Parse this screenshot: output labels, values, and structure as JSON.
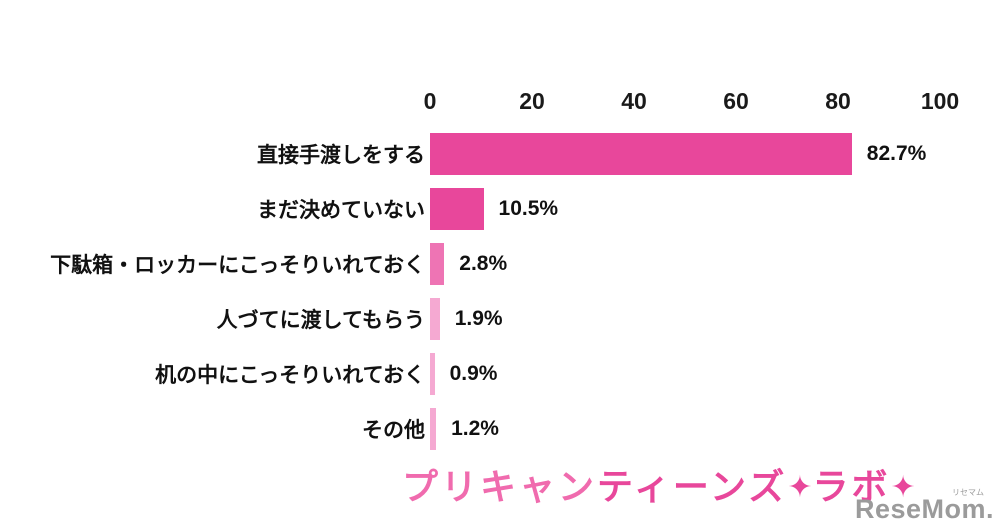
{
  "chart_data": {
    "type": "bar",
    "orientation": "horizontal",
    "title": "",
    "xlabel": "",
    "ylabel": "",
    "xlim": [
      0,
      100
    ],
    "x_ticks": [
      "0",
      "20",
      "40",
      "60",
      "80",
      "100"
    ],
    "grid": false,
    "legend": false,
    "categories": [
      "直接手渡しをする",
      "まだ決めていない",
      "下駄箱・ロッカーにこっそりいれておく",
      "人づてに渡してもらう",
      "机の中にこっそりいれておく",
      "その他"
    ],
    "values": [
      82.7,
      10.5,
      2.8,
      1.9,
      0.9,
      1.2
    ],
    "value_labels": [
      "82.7%",
      "10.5%",
      "2.8%",
      "1.9%",
      "0.9%",
      "1.2%"
    ],
    "bar_colors": [
      "#e8479b",
      "#e8479b",
      "#ee74b4",
      "#f5a9d2",
      "#f5a9d2",
      "#f5a9d2"
    ]
  },
  "footer": {
    "logo_part1": "プリキャン",
    "logo_part2": "ティーンズ",
    "logo_sparkle1": "✦",
    "logo_part3": "ラボ",
    "logo_sparkle2": "✦",
    "watermark": "ReseMom.",
    "watermark_small": "リセマム"
  },
  "colors": {
    "bar_main": "#e8479b",
    "bar_light": "#f5a9d2",
    "text": "#111111",
    "watermark": "#9b9b9b"
  }
}
